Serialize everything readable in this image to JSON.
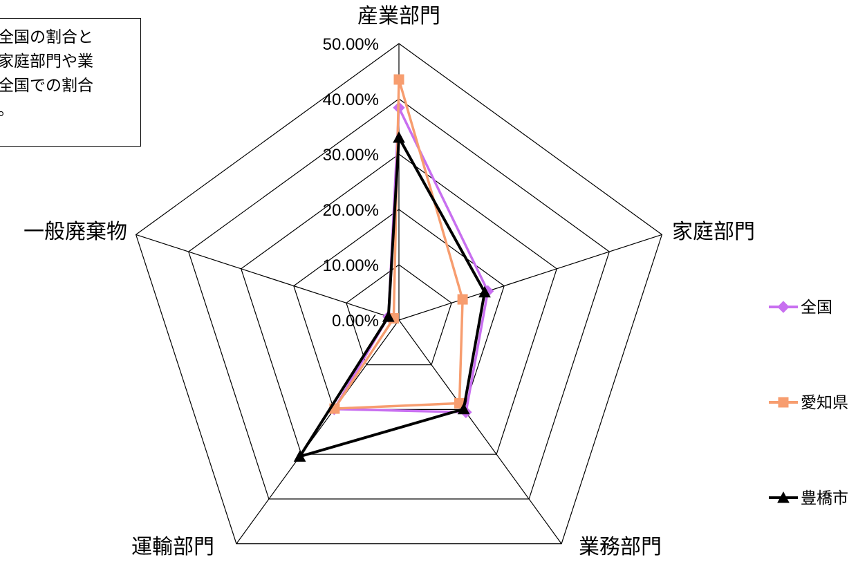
{
  "chart_data": {
    "type": "radar",
    "axes": [
      "産業部門",
      "家庭部門",
      "業務部門",
      "運輸部門",
      "一般廃棄物"
    ],
    "ticks": [
      "0.00%",
      "10.00%",
      "20.00%",
      "30.00%",
      "40.00%",
      "50.00%"
    ],
    "rmax": 0.5,
    "grid": true,
    "legend_position": "right",
    "series": [
      {
        "name": "全国",
        "color": "#c86ff0",
        "marker": "diamond",
        "values": [
          0.384,
          0.169,
          0.206,
          0.199,
          0.02
        ]
      },
      {
        "name": "愛知県",
        "color": "#f79d6f",
        "marker": "square",
        "values": [
          0.435,
          0.121,
          0.186,
          0.198,
          0.01
        ]
      },
      {
        "name": "豊橋市",
        "color": "#000000",
        "marker": "triangle",
        "values": [
          0.33,
          0.163,
          0.199,
          0.305,
          0.02
        ]
      }
    ]
  },
  "note": {
    "lines": [
      "全国の割合と",
      "家庭部門や業",
      "全国での割合",
      "。"
    ]
  }
}
